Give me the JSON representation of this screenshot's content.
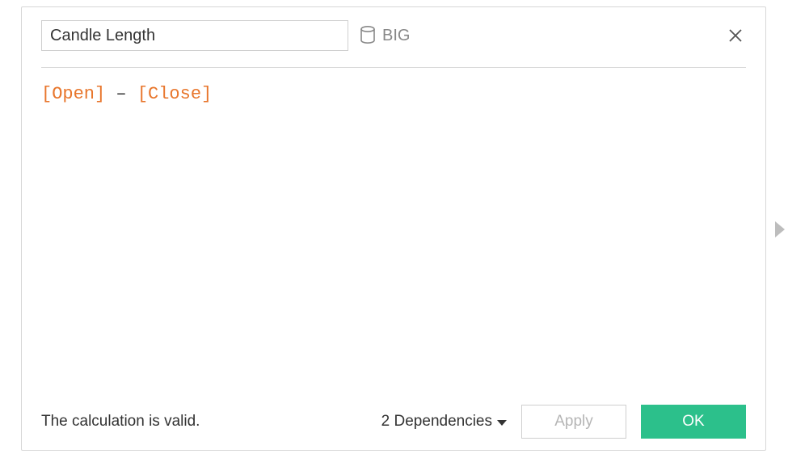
{
  "dialog": {
    "field_name": "Candle Length",
    "datasource_label": "BIG"
  },
  "formula": {
    "tokens": [
      {
        "text": "[Open]",
        "cls": "tok-field"
      },
      {
        "text": " ",
        "cls": "tok-op"
      },
      {
        "text": "–",
        "cls": "tok-op"
      },
      {
        "text": " ",
        "cls": "tok-op"
      },
      {
        "text": "[Close]",
        "cls": "tok-field"
      }
    ]
  },
  "footer": {
    "status_text": "The calculation is valid.",
    "dependencies_label": "2 Dependencies",
    "apply_label": "Apply",
    "ok_label": "OK"
  },
  "colors": {
    "field_token": "#e8762c",
    "operator_token": "#333333",
    "border": "#d7d7d7",
    "muted_text": "#888888",
    "primary_btn_bg": "#2cc08b",
    "primary_btn_text": "#ffffff",
    "disabled_text": "#b5b5b5",
    "expand_handle": "#bdbdbd"
  }
}
